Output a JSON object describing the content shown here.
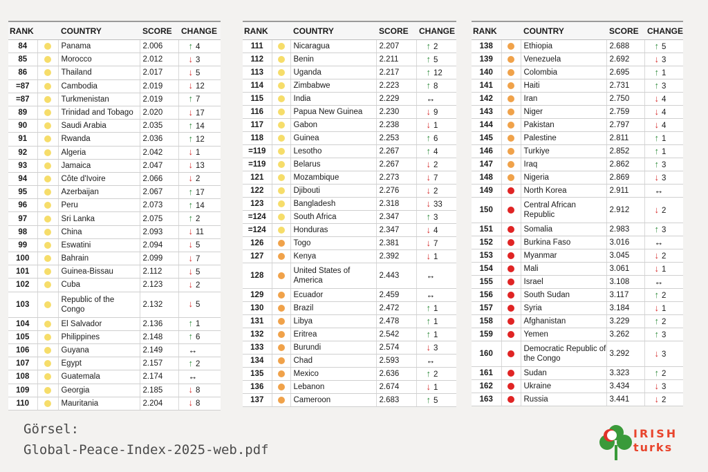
{
  "headers": {
    "rank": "RANK",
    "country": "COUNTRY",
    "score": "SCORE",
    "change": "CHANGE"
  },
  "colors": {
    "yellow": "#f6dd6a",
    "orange": "#f0a24a",
    "red": "#e02424",
    "up": "#2e8b3a",
    "down": "#d62b2b"
  },
  "columns": [
    [
      {
        "rank": "84",
        "dot": "yellow",
        "country": "Panama",
        "score": "2.006",
        "dir": "up",
        "change": "4"
      },
      {
        "rank": "85",
        "dot": "yellow",
        "country": "Morocco",
        "score": "2.012",
        "dir": "down",
        "change": "3"
      },
      {
        "rank": "86",
        "dot": "yellow",
        "country": "Thailand",
        "score": "2.017",
        "dir": "down",
        "change": "5"
      },
      {
        "rank": "=87",
        "dot": "yellow",
        "country": "Cambodia",
        "score": "2.019",
        "dir": "down",
        "change": "12"
      },
      {
        "rank": "=87",
        "dot": "yellow",
        "country": "Turkmenistan",
        "score": "2.019",
        "dir": "up",
        "change": "7"
      },
      {
        "rank": "89",
        "dot": "yellow",
        "country": "Trinidad and Tobago",
        "score": "2.020",
        "dir": "down",
        "change": "17"
      },
      {
        "rank": "90",
        "dot": "yellow",
        "country": "Saudi Arabia",
        "score": "2.035",
        "dir": "up",
        "change": "14"
      },
      {
        "rank": "91",
        "dot": "yellow",
        "country": "Rwanda",
        "score": "2.036",
        "dir": "up",
        "change": "12"
      },
      {
        "rank": "92",
        "dot": "yellow",
        "country": "Algeria",
        "score": "2.042",
        "dir": "down",
        "change": "1"
      },
      {
        "rank": "93",
        "dot": "yellow",
        "country": "Jamaica",
        "score": "2.047",
        "dir": "down",
        "change": "13"
      },
      {
        "rank": "94",
        "dot": "yellow",
        "country": "Côte d'Ivoire",
        "score": "2.066",
        "dir": "down",
        "change": "2"
      },
      {
        "rank": "95",
        "dot": "yellow",
        "country": "Azerbaijan",
        "score": "2.067",
        "dir": "up",
        "change": "17"
      },
      {
        "rank": "96",
        "dot": "yellow",
        "country": "Peru",
        "score": "2.073",
        "dir": "up",
        "change": "14"
      },
      {
        "rank": "97",
        "dot": "yellow",
        "country": "Sri Lanka",
        "score": "2.075",
        "dir": "up",
        "change": "2"
      },
      {
        "rank": "98",
        "dot": "yellow",
        "country": "China",
        "score": "2.093",
        "dir": "down",
        "change": "11"
      },
      {
        "rank": "99",
        "dot": "yellow",
        "country": "Eswatini",
        "score": "2.094",
        "dir": "down",
        "change": "5"
      },
      {
        "rank": "100",
        "dot": "yellow",
        "country": "Bahrain",
        "score": "2.099",
        "dir": "down",
        "change": "7"
      },
      {
        "rank": "101",
        "dot": "yellow",
        "country": "Guinea-Bissau",
        "score": "2.112",
        "dir": "down",
        "change": "5"
      },
      {
        "rank": "102",
        "dot": "yellow",
        "country": "Cuba",
        "score": "2.123",
        "dir": "down",
        "change": "2"
      },
      {
        "rank": "103",
        "dot": "yellow",
        "country": "Republic of the Congo",
        "score": "2.132",
        "dir": "down",
        "change": "5",
        "tall": true
      },
      {
        "rank": "104",
        "dot": "yellow",
        "country": "El Salvador",
        "score": "2.136",
        "dir": "up",
        "change": "1"
      },
      {
        "rank": "105",
        "dot": "yellow",
        "country": "Philippines",
        "score": "2.148",
        "dir": "up",
        "change": "6"
      },
      {
        "rank": "106",
        "dot": "yellow",
        "country": "Guyana",
        "score": "2.149",
        "dir": "same",
        "change": ""
      },
      {
        "rank": "107",
        "dot": "yellow",
        "country": "Egypt",
        "score": "2.157",
        "dir": "up",
        "change": "2"
      },
      {
        "rank": "108",
        "dot": "yellow",
        "country": "Guatemala",
        "score": "2.174",
        "dir": "same",
        "change": ""
      },
      {
        "rank": "109",
        "dot": "yellow",
        "country": "Georgia",
        "score": "2.185",
        "dir": "down",
        "change": "8"
      },
      {
        "rank": "110",
        "dot": "yellow",
        "country": "Mauritania",
        "score": "2.204",
        "dir": "down",
        "change": "8"
      }
    ],
    [
      {
        "rank": "111",
        "dot": "yellow",
        "country": "Nicaragua",
        "score": "2.207",
        "dir": "up",
        "change": "2"
      },
      {
        "rank": "112",
        "dot": "yellow",
        "country": "Benin",
        "score": "2.211",
        "dir": "up",
        "change": "5"
      },
      {
        "rank": "113",
        "dot": "yellow",
        "country": "Uganda",
        "score": "2.217",
        "dir": "up",
        "change": "12"
      },
      {
        "rank": "114",
        "dot": "yellow",
        "country": "Zimbabwe",
        "score": "2.223",
        "dir": "up",
        "change": "8"
      },
      {
        "rank": "115",
        "dot": "yellow",
        "country": "India",
        "score": "2.229",
        "dir": "same",
        "change": ""
      },
      {
        "rank": "116",
        "dot": "yellow",
        "country": "Papua New Guinea",
        "score": "2.230",
        "dir": "down",
        "change": "9"
      },
      {
        "rank": "117",
        "dot": "yellow",
        "country": "Gabon",
        "score": "2.238",
        "dir": "down",
        "change": "1"
      },
      {
        "rank": "118",
        "dot": "yellow",
        "country": "Guinea",
        "score": "2.253",
        "dir": "up",
        "change": "6"
      },
      {
        "rank": "=119",
        "dot": "yellow",
        "country": "Lesotho",
        "score": "2.267",
        "dir": "up",
        "change": "4"
      },
      {
        "rank": "=119",
        "dot": "yellow",
        "country": "Belarus",
        "score": "2.267",
        "dir": "down",
        "change": "2"
      },
      {
        "rank": "121",
        "dot": "yellow",
        "country": "Mozambique",
        "score": "2.273",
        "dir": "down",
        "change": "7"
      },
      {
        "rank": "122",
        "dot": "yellow",
        "country": "Djibouti",
        "score": "2.276",
        "dir": "down",
        "change": "2"
      },
      {
        "rank": "123",
        "dot": "yellow",
        "country": "Bangladesh",
        "score": "2.318",
        "dir": "down",
        "change": "33"
      },
      {
        "rank": "=124",
        "dot": "yellow",
        "country": "South Africa",
        "score": "2.347",
        "dir": "up",
        "change": "3"
      },
      {
        "rank": "=124",
        "dot": "yellow",
        "country": "Honduras",
        "score": "2.347",
        "dir": "down",
        "change": "4"
      },
      {
        "rank": "126",
        "dot": "orange",
        "country": "Togo",
        "score": "2.381",
        "dir": "down",
        "change": "7"
      },
      {
        "rank": "127",
        "dot": "orange",
        "country": "Kenya",
        "score": "2.392",
        "dir": "down",
        "change": "1"
      },
      {
        "rank": "128",
        "dot": "orange",
        "country": "United States of America",
        "score": "2.443",
        "dir": "same",
        "change": "",
        "tall": true
      },
      {
        "rank": "129",
        "dot": "orange",
        "country": "Ecuador",
        "score": "2.459",
        "dir": "same",
        "change": ""
      },
      {
        "rank": "130",
        "dot": "orange",
        "country": "Brazil",
        "score": "2.472",
        "dir": "up",
        "change": "1"
      },
      {
        "rank": "131",
        "dot": "orange",
        "country": "Libya",
        "score": "2.478",
        "dir": "up",
        "change": "1"
      },
      {
        "rank": "132",
        "dot": "orange",
        "country": "Eritrea",
        "score": "2.542",
        "dir": "up",
        "change": "1"
      },
      {
        "rank": "133",
        "dot": "orange",
        "country": "Burundi",
        "score": "2.574",
        "dir": "down",
        "change": "3"
      },
      {
        "rank": "134",
        "dot": "orange",
        "country": "Chad",
        "score": "2.593",
        "dir": "same",
        "change": ""
      },
      {
        "rank": "135",
        "dot": "orange",
        "country": "Mexico",
        "score": "2.636",
        "dir": "up",
        "change": "2"
      },
      {
        "rank": "136",
        "dot": "orange",
        "country": "Lebanon",
        "score": "2.674",
        "dir": "down",
        "change": "1"
      },
      {
        "rank": "137",
        "dot": "orange",
        "country": "Cameroon",
        "score": "2.683",
        "dir": "up",
        "change": "5"
      }
    ],
    [
      {
        "rank": "138",
        "dot": "orange",
        "country": "Ethiopia",
        "score": "2.688",
        "dir": "up",
        "change": "5"
      },
      {
        "rank": "139",
        "dot": "orange",
        "country": "Venezuela",
        "score": "2.692",
        "dir": "down",
        "change": "3"
      },
      {
        "rank": "140",
        "dot": "orange",
        "country": "Colombia",
        "score": "2.695",
        "dir": "up",
        "change": "1"
      },
      {
        "rank": "141",
        "dot": "orange",
        "country": "Haiti",
        "score": "2.731",
        "dir": "up",
        "change": "3"
      },
      {
        "rank": "142",
        "dot": "orange",
        "country": "Iran",
        "score": "2.750",
        "dir": "down",
        "change": "4"
      },
      {
        "rank": "143",
        "dot": "orange",
        "country": "Niger",
        "score": "2.759",
        "dir": "down",
        "change": "4"
      },
      {
        "rank": "144",
        "dot": "orange",
        "country": "Pakistan",
        "score": "2.797",
        "dir": "down",
        "change": "4"
      },
      {
        "rank": "145",
        "dot": "orange",
        "country": "Palestine",
        "score": "2.811",
        "dir": "up",
        "change": "1"
      },
      {
        "rank": "146",
        "dot": "orange",
        "country": "Turkiye",
        "score": "2.852",
        "dir": "up",
        "change": "1"
      },
      {
        "rank": "147",
        "dot": "orange",
        "country": "Iraq",
        "score": "2.862",
        "dir": "up",
        "change": "3"
      },
      {
        "rank": "148",
        "dot": "orange",
        "country": "Nigeria",
        "score": "2.869",
        "dir": "down",
        "change": "3"
      },
      {
        "rank": "149",
        "dot": "red",
        "country": "North Korea",
        "score": "2.911",
        "dir": "same",
        "change": ""
      },
      {
        "rank": "150",
        "dot": "red",
        "country": "Central African Republic",
        "score": "2.912",
        "dir": "down",
        "change": "2",
        "tall": true
      },
      {
        "rank": "151",
        "dot": "red",
        "country": "Somalia",
        "score": "2.983",
        "dir": "up",
        "change": "3"
      },
      {
        "rank": "152",
        "dot": "red",
        "country": "Burkina Faso",
        "score": "3.016",
        "dir": "same",
        "change": ""
      },
      {
        "rank": "153",
        "dot": "red",
        "country": "Myanmar",
        "score": "3.045",
        "dir": "down",
        "change": "2"
      },
      {
        "rank": "154",
        "dot": "red",
        "country": "Mali",
        "score": "3.061",
        "dir": "down",
        "change": "1"
      },
      {
        "rank": "155",
        "dot": "red",
        "country": "Israel",
        "score": "3.108",
        "dir": "same",
        "change": ""
      },
      {
        "rank": "156",
        "dot": "red",
        "country": "South Sudan",
        "score": "3.117",
        "dir": "up",
        "change": "2"
      },
      {
        "rank": "157",
        "dot": "red",
        "country": "Syria",
        "score": "3.184",
        "dir": "down",
        "change": "1"
      },
      {
        "rank": "158",
        "dot": "red",
        "country": "Afghanistan",
        "score": "3.229",
        "dir": "up",
        "change": "2"
      },
      {
        "rank": "159",
        "dot": "red",
        "country": "Yemen",
        "score": "3.262",
        "dir": "up",
        "change": "3"
      },
      {
        "rank": "160",
        "dot": "red",
        "country": "Democratic Republic of the Congo",
        "score": "3.292",
        "dir": "down",
        "change": "3",
        "tall": true
      },
      {
        "rank": "161",
        "dot": "red",
        "country": "Sudan",
        "score": "3.323",
        "dir": "up",
        "change": "2"
      },
      {
        "rank": "162",
        "dot": "red",
        "country": "Ukraine",
        "score": "3.434",
        "dir": "down",
        "change": "3"
      },
      {
        "rank": "163",
        "dot": "red",
        "country": "Russia",
        "score": "3.441",
        "dir": "down",
        "change": "2"
      }
    ]
  ],
  "caption": {
    "line1": "Görsel:",
    "line2": "Global-Peace-Index-2025-web.pdf"
  },
  "logo": {
    "line1": "IRISH",
    "line2": "turks"
  }
}
